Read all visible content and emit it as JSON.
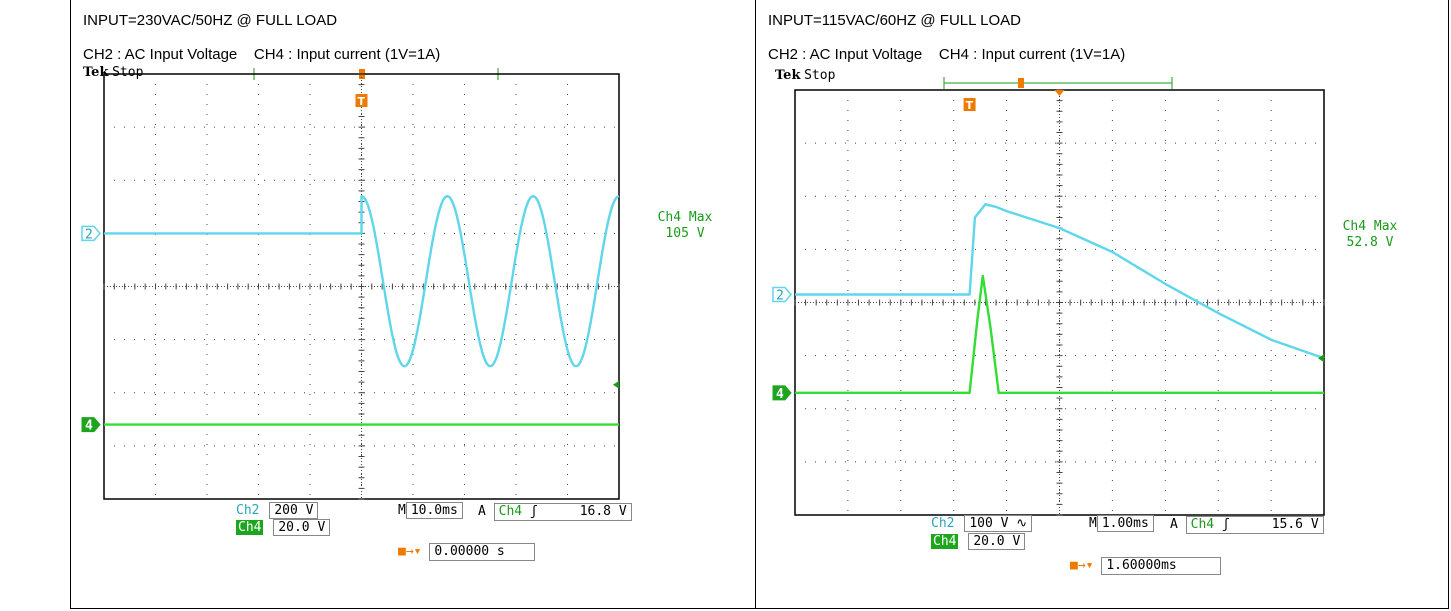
{
  "colors": {
    "ch2": "#5fd6ea",
    "ch4": "#33dd33",
    "trigger": "#f07a00",
    "grid": "#444444"
  },
  "panels": [
    {
      "title": "INPUT=230VAC/50HZ @ FULL LOAD",
      "channels_text": "CH2 : AC Input Voltage    CH4 : Input current (1V=1A)",
      "scope_brand": "Tek",
      "run_state": "Stop",
      "trigger_marker": "T",
      "ch2_marker": "2",
      "ch4_marker": "4",
      "measurement_label": "Ch4 Max",
      "measurement_value": "105 V",
      "ch2_label": "Ch2",
      "ch2_scale": "200 V",
      "ch4_label": "Ch4",
      "ch4_scale": "20.0 V",
      "timebase_prefix": "M",
      "timebase": "10.0ms",
      "trig_prefix": "A",
      "trig_source": "Ch4",
      "trig_level": "16.8 V",
      "trig_pos": "0.00000 s"
    },
    {
      "title": "INPUT=115VAC/60HZ @ FULL LOAD",
      "channels_text": "CH2 : AC Input Voltage    CH4 : Input current (1V=1A)",
      "scope_brand": "Tek",
      "run_state": "Stop",
      "trigger_marker": "T",
      "ch2_marker": "2",
      "ch4_marker": "4",
      "measurement_label": "Ch4 Max",
      "measurement_value": "52.8 V",
      "ch2_label": "Ch2",
      "ch2_scale": "100 V",
      "ch2_coupling": "∿",
      "ch4_label": "Ch4",
      "ch4_scale": "20.0 V",
      "timebase_prefix": "M",
      "timebase": "1.00ms",
      "trig_prefix": "A",
      "trig_source": "Ch4",
      "trig_level": "15.6 V",
      "trig_pos": "1.60000ms"
    }
  ],
  "chart_data": [
    {
      "type": "line",
      "x_range_div": [
        0,
        10
      ],
      "y_range_div": [
        -4,
        4
      ],
      "grid": true,
      "series": [
        {
          "name": "CH2 : AC Input Voltage",
          "x": [
            0,
            5,
            5.0,
            10
          ],
          "waveform": "step-then-sine",
          "sine_cycles": 3.0,
          "sine_start_x": 5.0,
          "pre_level_div": 1.0,
          "amplitude_div": 1.6,
          "offset_div": 0.1
        },
        {
          "name": "CH4 : Input current (1V=1A)",
          "x": [
            0,
            10
          ],
          "y": [
            -2.6,
            -2.6
          ]
        }
      ]
    },
    {
      "type": "line",
      "x_range_div": [
        0,
        10
      ],
      "y_range_div": [
        -4,
        4
      ],
      "grid": true,
      "series": [
        {
          "name": "CH2 : AC Input Voltage",
          "x": [
            0,
            3.3,
            3.4,
            3.6,
            3.8,
            4.0,
            5.0,
            6.0,
            7.0,
            8.0,
            9.0,
            10.0
          ],
          "y": [
            0.15,
            0.15,
            1.6,
            1.85,
            1.8,
            1.72,
            1.4,
            0.95,
            0.35,
            -0.2,
            -0.7,
            -1.05
          ]
        },
        {
          "name": "CH4 : Input current (1V=1A)",
          "x": [
            0,
            3.3,
            3.45,
            3.55,
            3.7,
            3.85,
            4.0,
            10.0
          ],
          "y": [
            -1.7,
            -1.7,
            -0.3,
            0.5,
            -0.5,
            -1.7,
            -1.7,
            -1.7
          ]
        }
      ]
    }
  ]
}
